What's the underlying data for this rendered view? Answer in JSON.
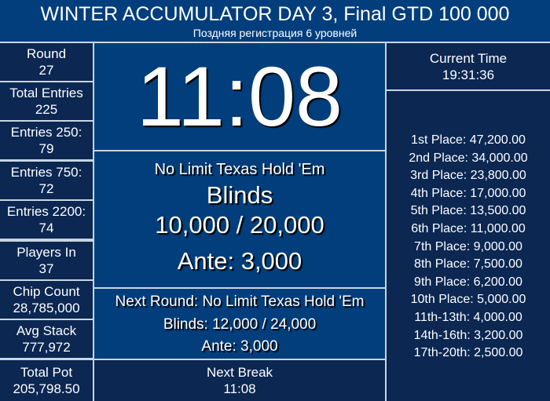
{
  "header": {
    "title": "WINTER ACCUMULATOR DAY 3, Final GTD 100 000",
    "subtitle": "Поздняя регистрация 6 уровней"
  },
  "stats": [
    {
      "label": "Round",
      "value": "27"
    },
    {
      "label": "Total Entries",
      "value": "225"
    },
    {
      "label": "Entries 250:",
      "value": "79"
    },
    {
      "label": "Entries 750:",
      "value": "72"
    },
    {
      "label": "Entries 2200:",
      "value": "74"
    },
    {
      "label": "Players In",
      "value": "37"
    },
    {
      "label": "Chip Count",
      "value": "28,785,000"
    },
    {
      "label": "Avg Stack",
      "value": "777,972"
    },
    {
      "label": "Total Pot",
      "value": "205,798.50"
    }
  ],
  "timer": "11:08",
  "current": {
    "game": "No Limit Texas Hold 'Em",
    "blinds_label": "Blinds",
    "blinds": "10,000 / 20,000",
    "ante": "Ante: 3,000"
  },
  "next": {
    "round": "Next Round: No Limit Texas Hold 'Em",
    "blinds": "Blinds: 12,000 / 24,000",
    "ante": "Ante: 3,000"
  },
  "next_break": {
    "label": "Next Break",
    "value": "11:08"
  },
  "clock": {
    "label": "Current Time",
    "value": "19:31:36"
  },
  "payouts": [
    "1st Place: 47,200.00",
    "2nd Place: 34,000.00",
    "3rd Place: 23,800.00",
    "4th Place: 17,000.00",
    "5th Place: 13,500.00",
    "6th Place: 11,000.00",
    "7th Place: 9,000.00",
    "8th Place: 7,500.00",
    "9th Place: 6,200.00",
    "10th Place: 5,000.00",
    "11th-13th: 4,000.00",
    "14th-16th: 3,200.00",
    "17th-20th: 2,500.00"
  ]
}
